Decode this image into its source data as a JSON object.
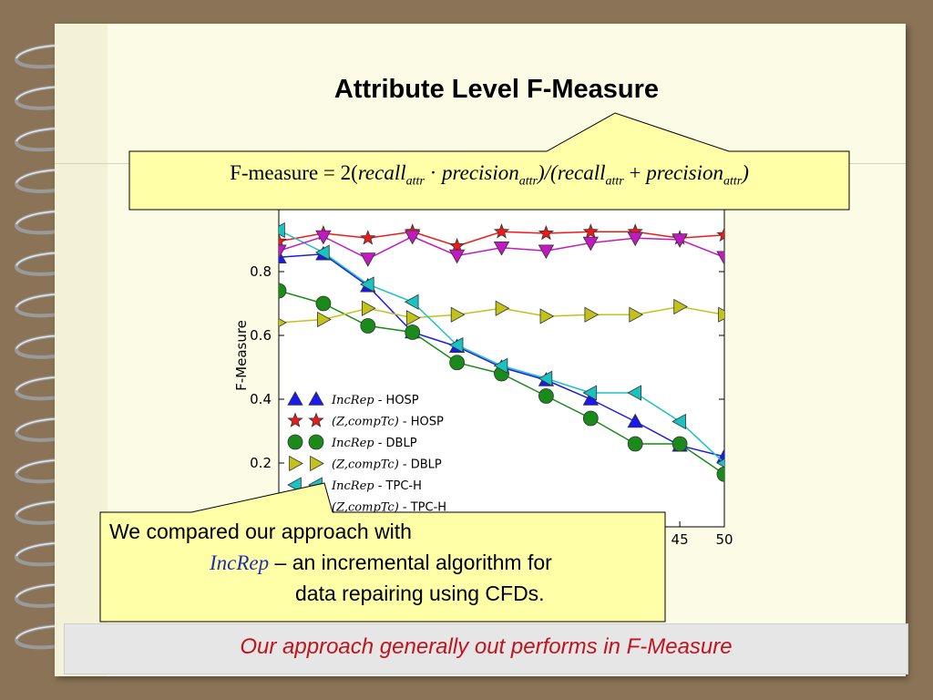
{
  "slide": {
    "title": "Attribute Level F-Measure",
    "formula": {
      "lead": "F-measure = 2(",
      "recall": "recall",
      "attr_sub": "attr",
      "dot": " · ",
      "precision": "precision",
      "mid": ")/(",
      "plus": " + ",
      "close": ")"
    },
    "note": {
      "line1": "We compared our approach with",
      "increp": "IncRep",
      "line2_rest": " – an incremental algorithm for",
      "line3": "data repairing using CFDs."
    },
    "banner": "Our approach generally out performs in F-Measure"
  },
  "colors": {
    "background": "#8a7356",
    "paper": "#fbfbe6",
    "callout_fill": "#ffffa8",
    "banner_text": "#c0141e",
    "increp_text": "#1f2fb5"
  },
  "chart_data": {
    "type": "line",
    "title": "",
    "xlabel": "",
    "ylabel": "F-Measure",
    "xlim": [
      0,
      50
    ],
    "ylim": [
      0.0,
      1.0
    ],
    "yticks": [
      0.2,
      0.4,
      0.6,
      0.8
    ],
    "xtick_labels_visible": [
      "45",
      "50"
    ],
    "x": [
      0,
      5,
      10,
      15,
      20,
      25,
      30,
      35,
      40,
      45,
      50
    ],
    "legend_location": "lower-left",
    "series": [
      {
        "name": "IncRep - HOSP",
        "color": "#1a1aee",
        "marker": "triangle-up",
        "values": [
          0.845,
          0.855,
          0.755,
          0.61,
          0.565,
          0.5,
          0.46,
          0.4,
          0.33,
          0.255,
          0.22
        ]
      },
      {
        "name": "(Z,compTc) - HOSP",
        "color": "#ee1a1a",
        "marker": "star",
        "values": [
          0.895,
          0.92,
          0.905,
          0.925,
          0.88,
          0.925,
          0.92,
          0.925,
          0.925,
          0.905,
          0.915
        ]
      },
      {
        "name": "IncRep - DBLP",
        "color": "#1a8a1a",
        "marker": "circle",
        "values": [
          0.74,
          0.7,
          0.63,
          0.61,
          0.515,
          0.48,
          0.41,
          0.34,
          0.26,
          0.26,
          0.165
        ]
      },
      {
        "name": "(Z,compTc) - DBLP",
        "color": "#c2c21a",
        "marker": "triangle-right",
        "values": [
          0.64,
          0.65,
          0.685,
          0.655,
          0.665,
          0.685,
          0.66,
          0.665,
          0.665,
          0.69,
          0.665
        ]
      },
      {
        "name": "IncRep - TPC-H",
        "color": "#1ac2c2",
        "marker": "triangle-left",
        "values": [
          0.93,
          0.86,
          0.76,
          0.705,
          0.57,
          0.505,
          0.465,
          0.42,
          0.42,
          0.33,
          0.2
        ]
      },
      {
        "name": "(Z,compTc) - TPC-H",
        "color": "#c21ac2",
        "marker": "triangle-down",
        "values": [
          0.865,
          0.91,
          0.84,
          0.91,
          0.85,
          0.875,
          0.865,
          0.89,
          0.905,
          0.9,
          0.845
        ]
      }
    ],
    "legend_entries": [
      {
        "method": "IncRep",
        "dataset": "HOSP"
      },
      {
        "method": "(Z,compTc)",
        "dataset": "HOSP"
      },
      {
        "method": "IncRep",
        "dataset": "DBLP"
      },
      {
        "method": "(Z,compTc)",
        "dataset": "DBLP"
      },
      {
        "method": "IncRep",
        "dataset": "TPC-H"
      },
      {
        "method": "(Z,compTc)",
        "dataset": "TPC-H"
      }
    ]
  }
}
